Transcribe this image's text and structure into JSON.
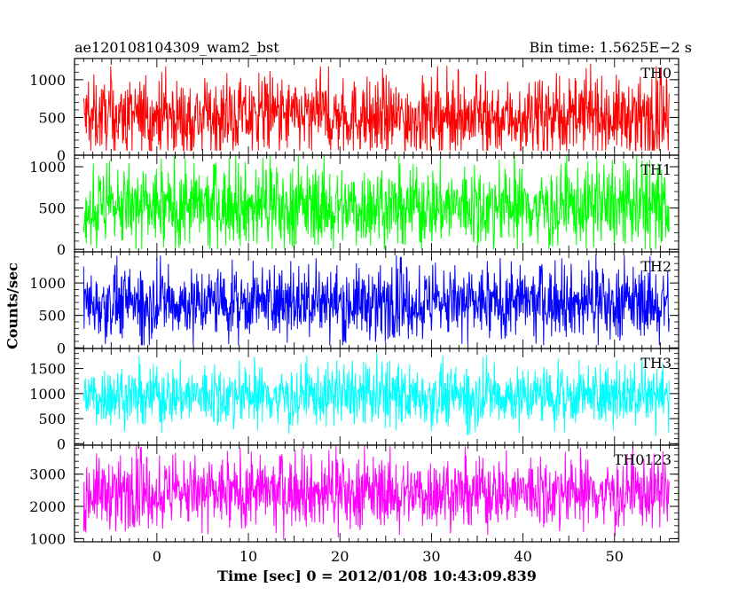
{
  "header": {
    "title_left": "ae120108104309_wam2_bst",
    "title_right": "Bin time: 1.5625E−2 s"
  },
  "chart_data": {
    "type": "line",
    "xlabel": "Time [sec] 0 = 2012/01/08 10:43:09.839",
    "ylabel": "Counts/sec",
    "xlim": [
      -9,
      57
    ],
    "x_ticks": [
      0,
      10,
      20,
      30,
      40,
      50
    ],
    "x_tick_labels": [
      "0",
      "10",
      "20",
      "30",
      "40",
      "50"
    ],
    "data_x_range": [
      -8,
      56
    ],
    "bin_time_s": 0.015625,
    "panels": [
      {
        "name": "TH0",
        "color": "#ff0000",
        "ylim": [
          0,
          1280
        ],
        "y_ticks": [
          0,
          500,
          1000
        ],
        "y_tick_labels": [
          "0",
          "500",
          "1000"
        ],
        "level": 510,
        "spread": 240,
        "min": 60,
        "max": 1280
      },
      {
        "name": "TH1",
        "color": "#00ff00",
        "ylim": [
          -30,
          1140
        ],
        "y_ticks": [
          0,
          500,
          1000
        ],
        "y_tick_labels": [
          "0",
          "500",
          "1000"
        ],
        "level": 520,
        "spread": 235,
        "min": 0,
        "max": 1150
      },
      {
        "name": "TH2",
        "color": "#0000ff",
        "ylim": [
          -10,
          1480
        ],
        "y_ticks": [
          0,
          500,
          1000
        ],
        "y_tick_labels": [
          "0",
          "500",
          "1000"
        ],
        "level": 700,
        "spread": 260,
        "min": 40,
        "max": 1460
      },
      {
        "name": "TH3",
        "color": "#00ffff",
        "ylim": [
          -30,
          1900
        ],
        "y_ticks": [
          0,
          500,
          1000,
          1500
        ],
        "y_tick_labels": [
          "0",
          "500",
          "1000",
          "1500"
        ],
        "level": 960,
        "spread": 290,
        "min": 100,
        "max": 1900
      },
      {
        "name": "TH0123",
        "color": "#ff00ff",
        "ylim": [
          900,
          3900
        ],
        "y_ticks": [
          1000,
          2000,
          3000
        ],
        "y_tick_labels": [
          "1000",
          "2000",
          "3000"
        ],
        "level": 2440,
        "spread": 520,
        "min": 950,
        "max": 3900
      }
    ]
  }
}
